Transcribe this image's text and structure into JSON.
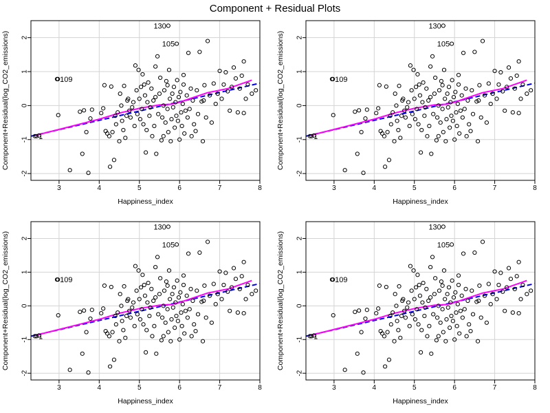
{
  "title": "Component + Residual Plots",
  "style": {
    "fit_line_color": "#0000ee",
    "smooth_color": "#ff00ff",
    "point_color": "#000000",
    "grid_color": "#d3d3d3"
  },
  "chart_data": [
    {
      "type": "scatter",
      "xlabel": "Happiness_index",
      "ylabel": "Component+Residual(log_CO2_emissions)",
      "xlim": [
        2.3,
        8.0
      ],
      "ylim": [
        -2.2,
        2.5
      ],
      "xticks": [
        3,
        4,
        5,
        6,
        7,
        8
      ],
      "yticks": [
        -2,
        -1,
        0,
        1,
        2
      ],
      "grid": true
    },
    {
      "type": "scatter",
      "xlabel": "Happiness_index",
      "ylabel": "Component+Residual(log_CO2_emissions)",
      "xlim": [
        2.3,
        8.0
      ],
      "ylim": [
        -2.2,
        2.5
      ],
      "xticks": [
        3,
        4,
        5,
        6,
        7,
        8
      ],
      "yticks": [
        -2,
        -1,
        0,
        1,
        2
      ],
      "grid": true
    },
    {
      "type": "scatter",
      "xlabel": "Happiness_index",
      "ylabel": "Component+Residual(log_CO2_emissions)",
      "xlim": [
        2.3,
        8.0
      ],
      "ylim": [
        -2.2,
        2.5
      ],
      "xticks": [
        3,
        4,
        5,
        6,
        7,
        8
      ],
      "yticks": [
        -2,
        -1,
        0,
        1,
        2
      ],
      "grid": true
    },
    {
      "type": "scatter",
      "xlabel": "Happiness_index",
      "ylabel": "Component+Residual(log_CO2_emissions)",
      "xlim": [
        2.3,
        8.0
      ],
      "ylim": [
        -2.2,
        2.5
      ],
      "xticks": [
        3,
        4,
        5,
        6,
        7,
        8
      ],
      "yticks": [
        -2,
        -1,
        0,
        1,
        2
      ],
      "grid": true
    }
  ],
  "shared_series": {
    "points": [
      [
        2.4,
        -0.9
      ],
      [
        2.5,
        -0.88
      ],
      [
        2.95,
        0.78
      ],
      [
        2.98,
        -0.28
      ],
      [
        3.27,
        -1.9
      ],
      [
        3.52,
        -0.18
      ],
      [
        3.58,
        -1.42
      ],
      [
        3.62,
        -0.14
      ],
      [
        3.68,
        -0.78
      ],
      [
        3.73,
        -1.98
      ],
      [
        3.78,
        -0.38
      ],
      [
        3.82,
        -0.12
      ],
      [
        4.05,
        -0.22
      ],
      [
        4.1,
        -0.08
      ],
      [
        4.13,
        0.6
      ],
      [
        4.16,
        -0.75
      ],
      [
        4.2,
        -0.82
      ],
      [
        4.25,
        -0.9
      ],
      [
        4.27,
        -1.8
      ],
      [
        4.3,
        0.56
      ],
      [
        4.33,
        -0.78
      ],
      [
        4.37,
        -1.6
      ],
      [
        4.4,
        -0.3
      ],
      [
        4.42,
        -0.55
      ],
      [
        4.46,
        -0.2
      ],
      [
        4.5,
        -1.05
      ],
      [
        4.52,
        0.35
      ],
      [
        4.55,
        0.0
      ],
      [
        4.57,
        -0.45
      ],
      [
        4.6,
        -0.72
      ],
      [
        4.62,
        0.58
      ],
      [
        4.65,
        -0.95
      ],
      [
        4.68,
        -0.3
      ],
      [
        4.72,
        0.2
      ],
      [
        4.75,
        -0.15
      ],
      [
        4.78,
        -0.35
      ],
      [
        4.82,
        -0.05
      ],
      [
        4.85,
        0.1
      ],
      [
        4.88,
        -0.6
      ],
      [
        4.9,
        1.18
      ],
      [
        4.93,
        0.45
      ],
      [
        4.95,
        -0.25
      ],
      [
        4.98,
        1.05
      ],
      [
        5.0,
        0.2
      ],
      [
        5.02,
        -0.4
      ],
      [
        5.04,
        0.55
      ],
      [
        5.06,
        -0.1
      ],
      [
        5.08,
        0.92
      ],
      [
        5.1,
        -0.55
      ],
      [
        5.12,
        0.62
      ],
      [
        5.14,
        0.3
      ],
      [
        5.16,
        -1.38
      ],
      [
        5.18,
        -0.72
      ],
      [
        5.2,
        0.1
      ],
      [
        5.22,
        0.68
      ],
      [
        5.25,
        -0.3
      ],
      [
        5.27,
        -0.05
      ],
      [
        5.3,
        0.5
      ],
      [
        5.32,
        -0.9
      ],
      [
        5.35,
        0.15
      ],
      [
        5.37,
        -0.6
      ],
      [
        5.4,
        0.25
      ],
      [
        5.42,
        -1.42
      ],
      [
        5.45,
        1.45
      ],
      [
        5.47,
        -0.25
      ],
      [
        5.5,
        0.35
      ],
      [
        5.52,
        0.82
      ],
      [
        5.55,
        -1.02
      ],
      [
        5.57,
        -0.35
      ],
      [
        5.6,
        0.0
      ],
      [
        5.62,
        0.45
      ],
      [
        5.65,
        -0.5
      ],
      [
        5.67,
        0.72
      ],
      [
        5.7,
        -0.1
      ],
      [
        5.72,
        -0.78
      ],
      [
        5.74,
        1.05
      ],
      [
        5.76,
        0.2
      ],
      [
        5.78,
        -1.05
      ],
      [
        5.8,
        -0.4
      ],
      [
        5.82,
        0.35
      ],
      [
        5.84,
        -0.05
      ],
      [
        5.86,
        0.55
      ],
      [
        5.88,
        -0.65
      ],
      [
        5.9,
        0.1
      ],
      [
        5.92,
        -0.3
      ],
      [
        5.94,
        0.75
      ],
      [
        5.96,
        -0.45
      ],
      [
        5.98,
        0.25
      ],
      [
        6.0,
        -1.0
      ],
      [
        6.02,
        0.4
      ],
      [
        6.04,
        -0.2
      ],
      [
        6.06,
        -0.6
      ],
      [
        6.08,
        0.05
      ],
      [
        6.1,
        0.62
      ],
      [
        6.12,
        -0.82
      ],
      [
        6.15,
        -0.15
      ],
      [
        6.18,
        0.3
      ],
      [
        6.2,
        -0.35
      ],
      [
        6.22,
        1.55
      ],
      [
        6.25,
        -0.1
      ],
      [
        6.28,
        0.5
      ],
      [
        6.3,
        -0.9
      ],
      [
        6.33,
        0.15
      ],
      [
        6.36,
        -0.55
      ],
      [
        6.4,
        -0.75
      ],
      [
        6.43,
        0.45
      ],
      [
        6.46,
        -0.25
      ],
      [
        6.5,
        1.58
      ],
      [
        6.55,
        0.12
      ],
      [
        6.58,
        -1.05
      ],
      [
        6.62,
        0.6
      ],
      [
        6.66,
        -0.35
      ],
      [
        6.7,
        1.9
      ],
      [
        6.75,
        0.3
      ],
      [
        6.8,
        -0.5
      ],
      [
        6.85,
        0.65
      ],
      [
        6.9,
        0.05
      ],
      [
        6.95,
        0.35
      ],
      [
        7.0,
        1.02
      ],
      [
        7.05,
        0.2
      ],
      [
        7.1,
        0.62
      ],
      [
        7.15,
        0.98
      ],
      [
        7.2,
        0.42
      ],
      [
        7.25,
        -0.15
      ],
      [
        7.3,
        0.55
      ],
      [
        7.35,
        1.12
      ],
      [
        7.4,
        0.8
      ],
      [
        7.45,
        -0.2
      ],
      [
        7.5,
        0.5
      ],
      [
        7.55,
        0.88
      ],
      [
        7.6,
        -0.22
      ],
      [
        7.65,
        0.2
      ],
      [
        7.7,
        0.62
      ],
      [
        7.8,
        0.35
      ],
      [
        7.9,
        0.45
      ],
      [
        5.4,
        1.15
      ],
      [
        5.7,
        0.6
      ],
      [
        6.6,
        0.15
      ],
      [
        7.6,
        1.3
      ],
      [
        4.7,
        0.15
      ],
      [
        5.6,
        -0.9
      ],
      [
        6.1,
        0.9
      ]
    ],
    "labeled_points": [
      {
        "x": 5.72,
        "y": 2.35,
        "label": "130"
      },
      {
        "x": 5.93,
        "y": 1.82,
        "label": "105"
      },
      {
        "x": 2.97,
        "y": 0.78,
        "label": "109"
      },
      {
        "x": 2.44,
        "y": -0.9,
        "label": "1"
      }
    ],
    "fit_line": {
      "x": [
        2.3,
        8.0
      ],
      "y": [
        -0.9,
        0.66
      ]
    },
    "smooth_line": {
      "x": [
        2.4,
        3.0,
        3.5,
        4.0,
        4.5,
        5.0,
        5.5,
        5.8,
        6.0,
        6.3,
        6.7,
        7.2,
        7.8
      ],
      "y": [
        -0.88,
        -0.7,
        -0.55,
        -0.4,
        -0.22,
        -0.08,
        0.02,
        0.04,
        0.1,
        0.22,
        0.38,
        0.5,
        0.75
      ]
    }
  }
}
